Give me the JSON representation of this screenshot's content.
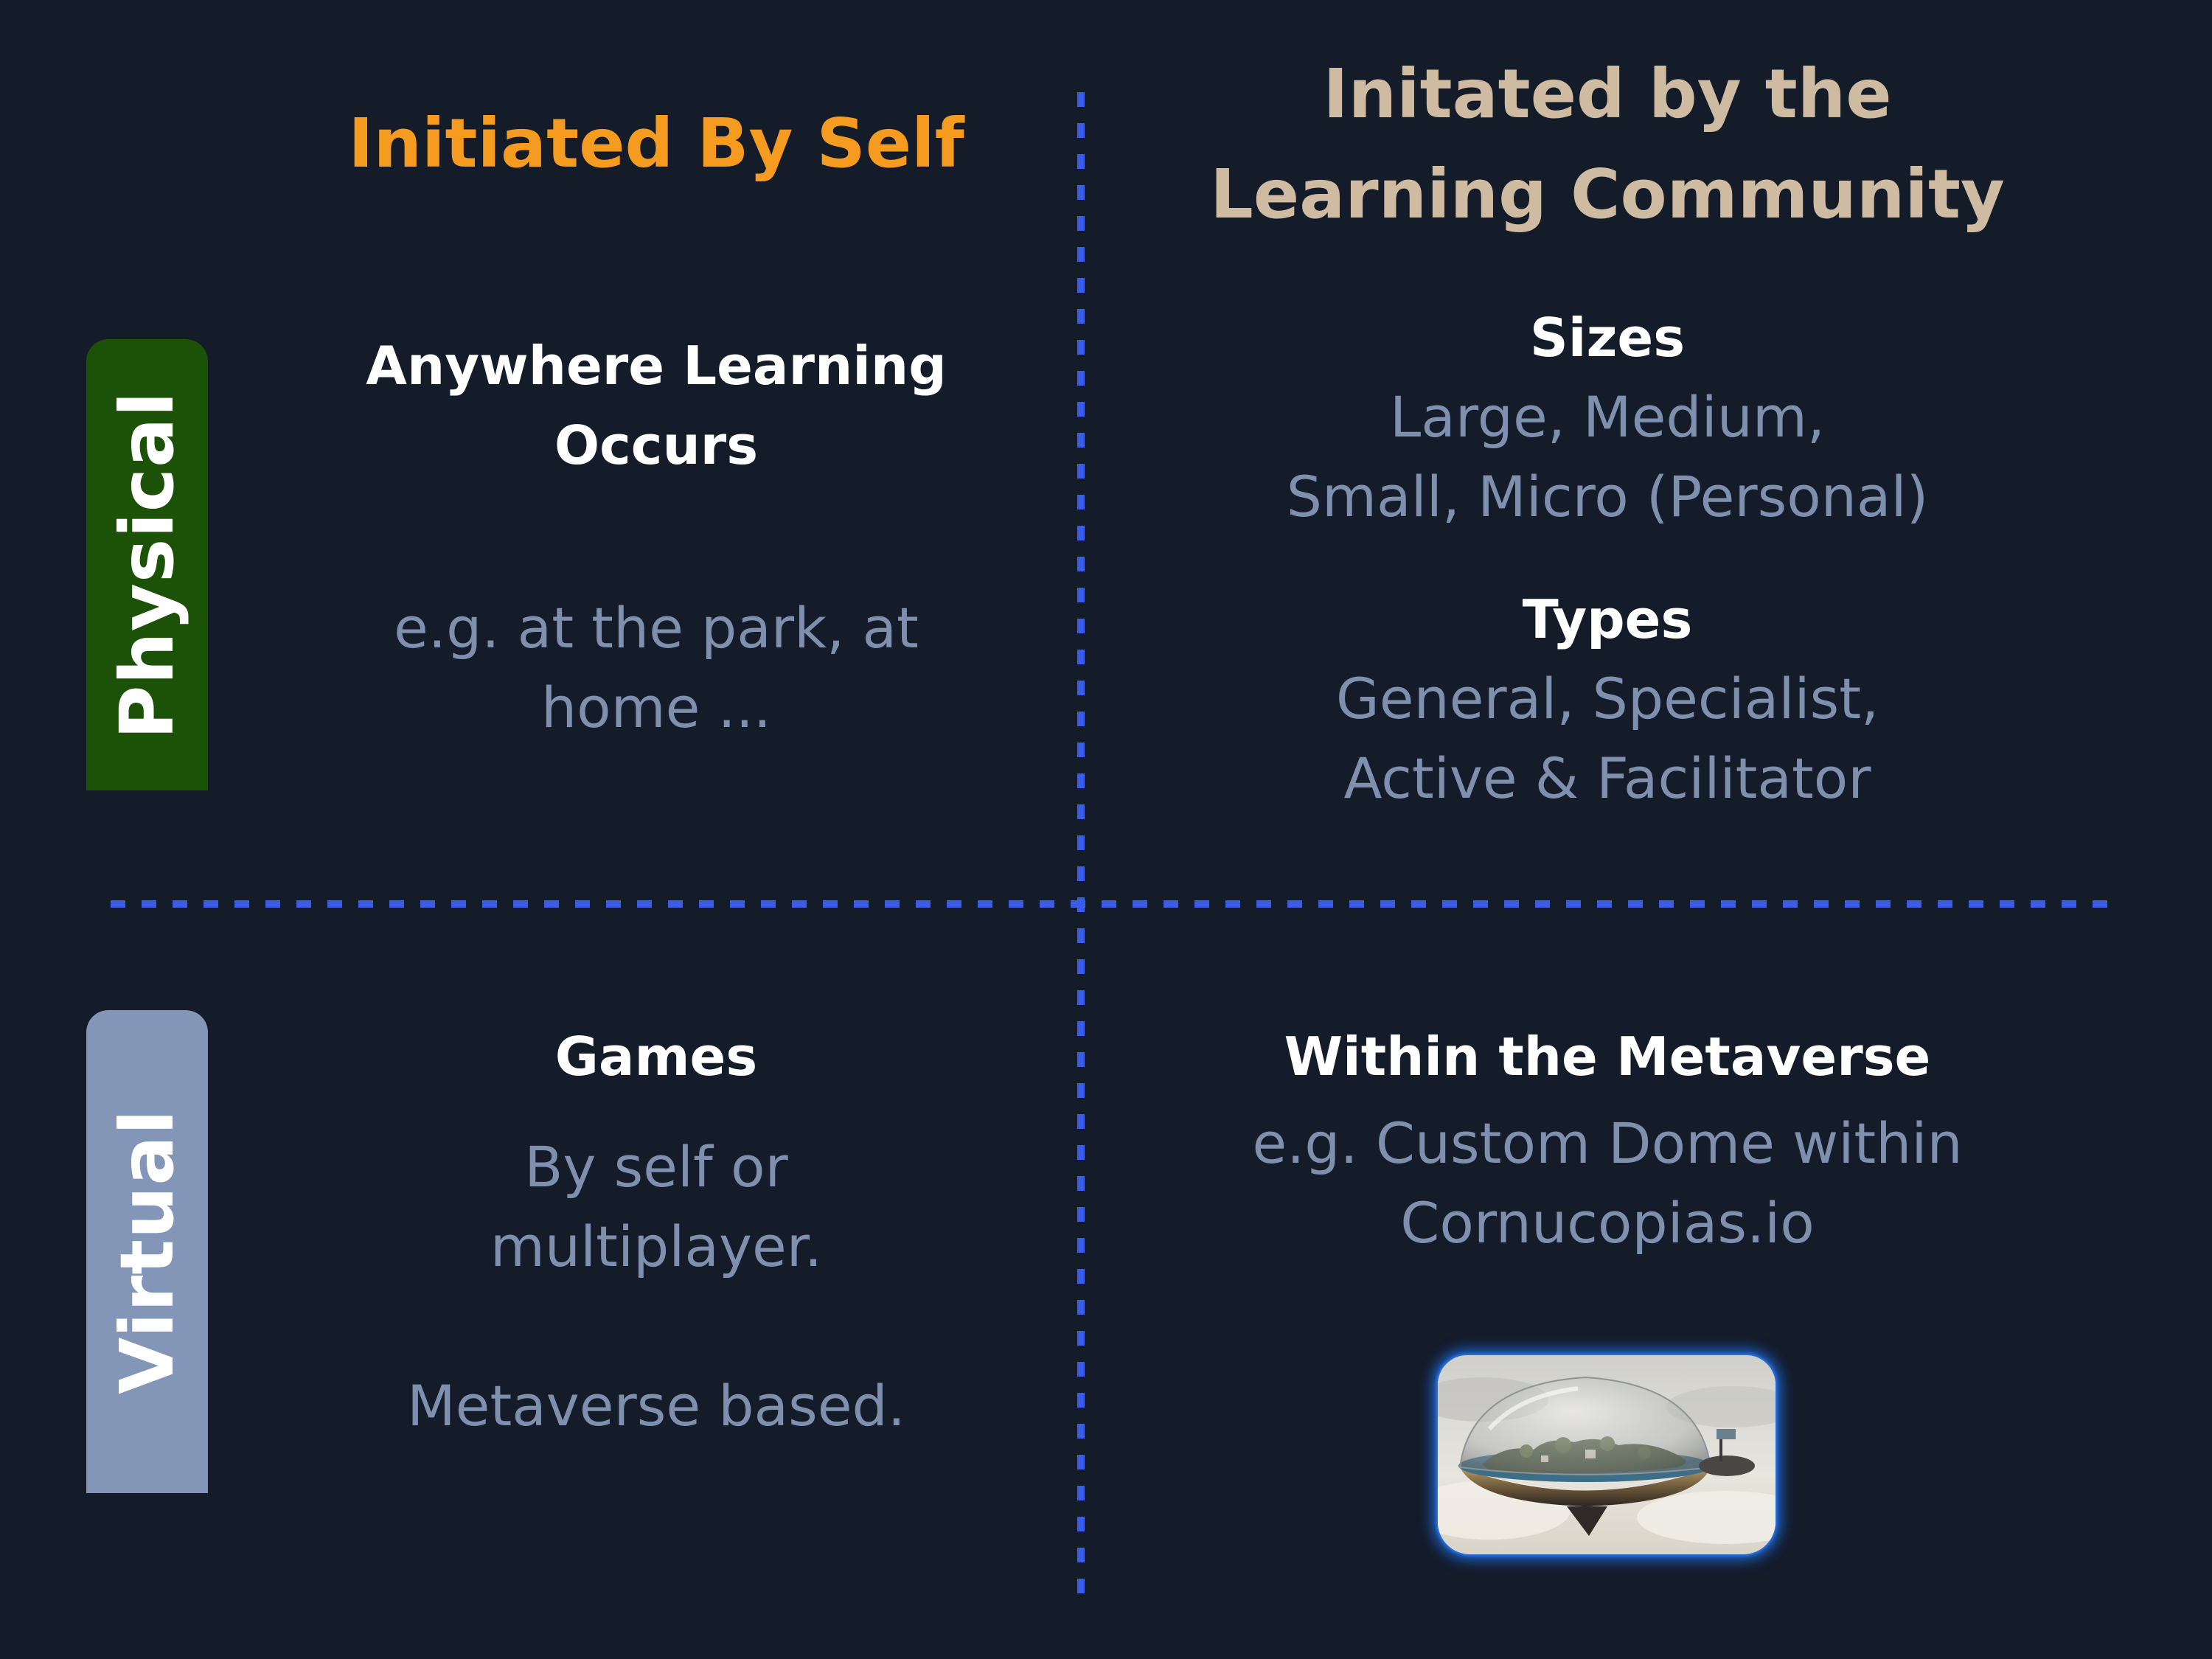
{
  "columns": {
    "left_heading": "Initiated By Self",
    "right_heading_line1": "Initated by the",
    "right_heading_line2": "Learning Community",
    "left_color": "#f59b1f",
    "right_color": "#cfbba2"
  },
  "rows": {
    "physical_label": "Physical",
    "virtual_label": "Virtual",
    "physical_color": "#1c5207",
    "virtual_color": "#8396b7"
  },
  "quadrants": {
    "physical_self": {
      "title_line1": "Anywhere Learning",
      "title_line2": "Occurs",
      "body_line1": "e.g. at the park, at",
      "body_line2": "home ..."
    },
    "physical_community": {
      "sizes_title": "Sizes",
      "sizes_line1": "Large, Medium,",
      "sizes_line2": "Small, Micro (Personal)",
      "types_title": "Types",
      "types_line1": "General, Specialist,",
      "types_line2": "Active & Facilitator"
    },
    "virtual_self": {
      "title": "Games",
      "body_line1": "By self or",
      "body_line2": "multiplayer.",
      "body_line3": "Metaverse based."
    },
    "virtual_community": {
      "title": "Within the Metaverse",
      "body_line1": "e.g. Custom Dome within",
      "body_line2": "Cornucopias.io",
      "image": "dome-island-image"
    }
  },
  "divider_color": "#3a5ce8",
  "background_color": "#141b29"
}
